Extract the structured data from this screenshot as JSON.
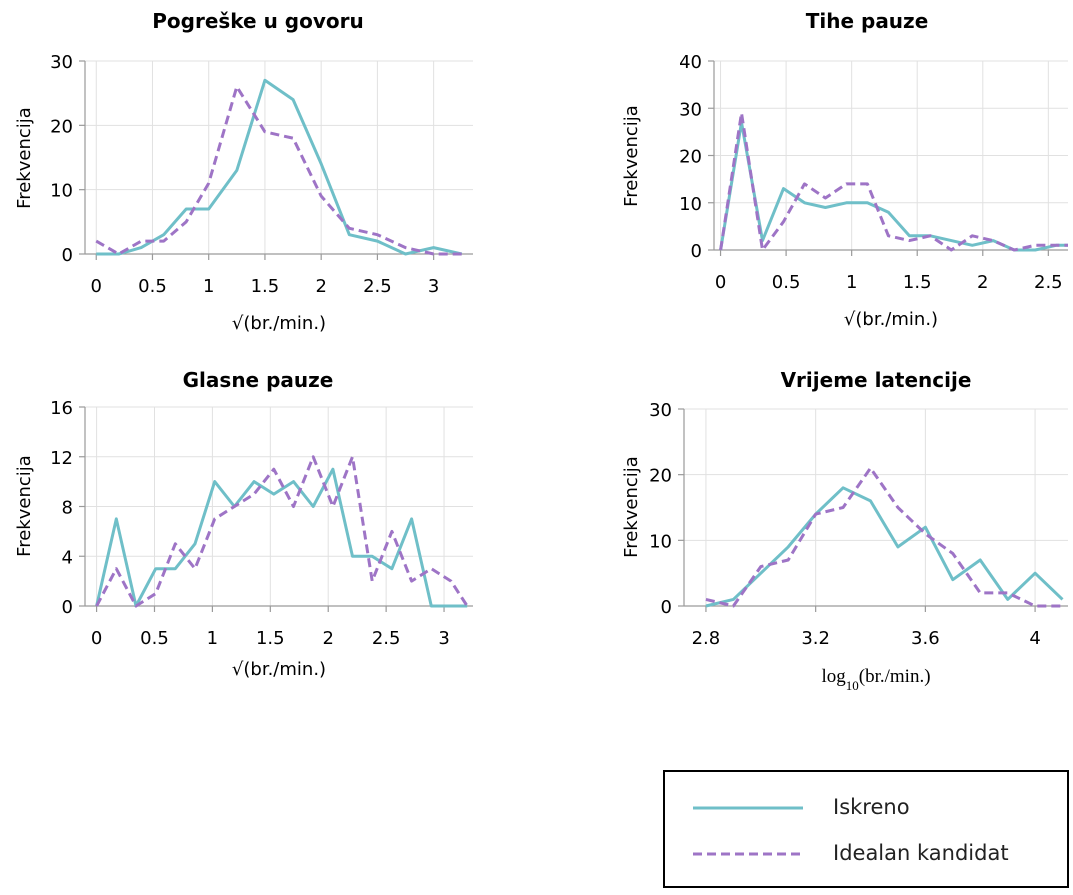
{
  "colors": {
    "iskreno": "#6fbfc8",
    "idealan": "#9e74c6",
    "grid": "#e1e1e1",
    "axis": "#9a9a9a"
  },
  "legend": {
    "iskreno": "Iskreno",
    "idealan": "Idealan kandidat"
  },
  "chart_data": [
    {
      "type": "line",
      "title": "Pogreške u govoru",
      "ylabel": "Frekvencija",
      "xlabel": "√(br./min.)",
      "xlim": [
        -0.1,
        3.35
      ],
      "ylim": [
        0,
        30
      ],
      "xticks": [
        0,
        0.5,
        1,
        1.5,
        2,
        2.5,
        3
      ],
      "xtick_labels": [
        "0",
        "0.5",
        "1",
        "1.5",
        "2",
        "2.5",
        "3"
      ],
      "yticks": [
        0,
        10,
        20,
        30
      ],
      "ytick_labels": [
        "0",
        "10",
        "20",
        "30"
      ],
      "series": [
        {
          "name": "Iskreno",
          "x": [
            0,
            0.2,
            0.4,
            0.6,
            0.8,
            1.0,
            1.25,
            1.5,
            1.75,
            2.0,
            2.25,
            2.5,
            2.75,
            3.0,
            3.25
          ],
          "y": [
            0,
            0,
            1,
            3,
            7,
            7,
            13,
            27,
            24,
            14,
            3,
            2,
            0,
            1,
            0
          ]
        },
        {
          "name": "Idealan kandidat",
          "x": [
            0,
            0.2,
            0.4,
            0.6,
            0.8,
            1.0,
            1.25,
            1.5,
            1.75,
            2.0,
            2.25,
            2.5,
            2.75,
            3.0,
            3.25
          ],
          "y": [
            2,
            0,
            2,
            2,
            5,
            11,
            26,
            19,
            18,
            9,
            4,
            3,
            1,
            0,
            0
          ]
        }
      ]
    },
    {
      "type": "line",
      "title": "Tihe pauze",
      "ylabel": "Frekvencija",
      "xlabel": "√(br./min.)",
      "xlim": [
        -0.05,
        2.65
      ],
      "ylim": [
        0,
        40
      ],
      "xticks": [
        0,
        0.5,
        1,
        1.5,
        2,
        2.5
      ],
      "xtick_labels": [
        "0",
        "0.5",
        "1",
        "1.5",
        "2",
        "2.5"
      ],
      "yticks": [
        0,
        10,
        20,
        30,
        40
      ],
      "ytick_labels": [
        "0",
        "10",
        "20",
        "30",
        "40"
      ],
      "series": [
        {
          "name": "Iskreno",
          "x": [
            0,
            0.16,
            0.32,
            0.48,
            0.64,
            0.8,
            0.96,
            1.12,
            1.28,
            1.44,
            1.6,
            1.76,
            1.92,
            2.08,
            2.24,
            2.4,
            2.56,
            2.65
          ],
          "y": [
            0,
            27,
            2,
            13,
            10,
            9,
            10,
            10,
            8,
            3,
            3,
            2,
            1,
            2,
            0,
            0,
            1,
            1
          ]
        },
        {
          "name": "Idealan kandidat",
          "x": [
            0,
            0.16,
            0.32,
            0.48,
            0.64,
            0.8,
            0.96,
            1.12,
            1.28,
            1.44,
            1.6,
            1.76,
            1.92,
            2.08,
            2.24,
            2.4,
            2.56,
            2.65
          ],
          "y": [
            0,
            29,
            0,
            6,
            14,
            11,
            14,
            14,
            3,
            2,
            3,
            0,
            3,
            2,
            0,
            1,
            1,
            1
          ]
        }
      ]
    },
    {
      "type": "line",
      "title": "Glasne pauze",
      "ylabel": "Frekvencija",
      "xlabel": "√(br./min.)",
      "xlim": [
        -0.1,
        3.25
      ],
      "ylim": [
        0,
        16
      ],
      "xticks": [
        0,
        0.5,
        1,
        1.5,
        2,
        2.5,
        3
      ],
      "xtick_labels": [
        "0",
        "0.5",
        "1",
        "1.5",
        "2",
        "2.5",
        "3"
      ],
      "yticks": [
        0,
        4,
        8,
        12,
        16
      ],
      "ytick_labels": [
        "0",
        "4",
        "8",
        "12",
        "16"
      ],
      "series": [
        {
          "name": "Iskreno",
          "x": [
            0,
            0.17,
            0.34,
            0.51,
            0.68,
            0.85,
            1.02,
            1.19,
            1.36,
            1.53,
            1.7,
            1.87,
            2.04,
            2.21,
            2.38,
            2.55,
            2.72,
            2.89,
            3.06,
            3.2
          ],
          "y": [
            0,
            7,
            0,
            3,
            3,
            5,
            10,
            8,
            10,
            9,
            10,
            8,
            11,
            4,
            4,
            3,
            7,
            0,
            0,
            0
          ]
        },
        {
          "name": "Idealan kandidat",
          "x": [
            0,
            0.17,
            0.34,
            0.51,
            0.68,
            0.85,
            1.02,
            1.19,
            1.36,
            1.53,
            1.7,
            1.87,
            2.04,
            2.21,
            2.38,
            2.55,
            2.72,
            2.89,
            3.06,
            3.2
          ],
          "y": [
            0,
            3,
            0,
            1,
            5,
            3,
            7,
            8,
            9,
            11,
            8,
            12,
            8,
            12,
            2,
            6,
            2,
            3,
            2,
            0
          ]
        }
      ]
    },
    {
      "type": "line",
      "title": "Vrijeme latencije",
      "ylabel": "Frekvencija",
      "xlabel": "log10(br./min.)",
      "xlabel_base": "log",
      "xlabel_sub": "10",
      "xlabel_rest": "(br./min.)",
      "xlim": [
        2.72,
        4.12
      ],
      "ylim": [
        0,
        30
      ],
      "xticks": [
        2.8,
        3.2,
        3.6,
        4.0
      ],
      "xtick_labels": [
        "2.8",
        "3.2",
        "3.6",
        "4"
      ],
      "yticks": [
        0,
        10,
        20,
        30
      ],
      "ytick_labels": [
        "0",
        "10",
        "20",
        "30"
      ],
      "series": [
        {
          "name": "Iskreno",
          "x": [
            2.8,
            2.9,
            3.0,
            3.1,
            3.2,
            3.3,
            3.4,
            3.5,
            3.6,
            3.7,
            3.8,
            3.9,
            4.0,
            4.1
          ],
          "y": [
            0,
            1,
            5,
            9,
            14,
            18,
            16,
            9,
            12,
            4,
            7,
            1,
            5,
            1
          ]
        },
        {
          "name": "Idealan kandidat",
          "x": [
            2.8,
            2.9,
            3.0,
            3.1,
            3.2,
            3.3,
            3.4,
            3.5,
            3.6,
            3.7,
            3.8,
            3.9,
            4.0,
            4.1
          ],
          "y": [
            1,
            0,
            6,
            7,
            14,
            15,
            21,
            15,
            11,
            8,
            2,
            2,
            0,
            0
          ]
        }
      ]
    }
  ]
}
